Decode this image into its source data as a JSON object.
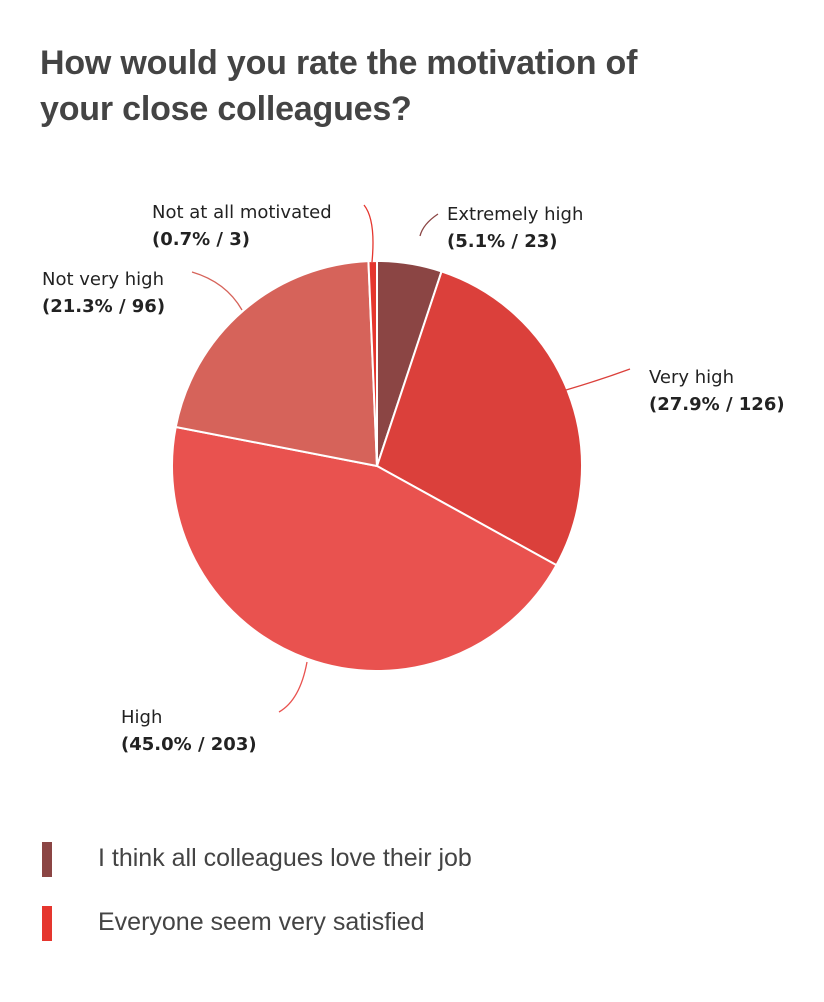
{
  "chart_data": {
    "type": "pie",
    "title": "How would you rate the motivation of your close colleagues?",
    "slices": [
      {
        "label": "Extremely high",
        "value": 23,
        "percent": "5.1%",
        "color": "#8B4544"
      },
      {
        "label": "Very high",
        "value": 126,
        "percent": "27.9%",
        "color": "#DB403B"
      },
      {
        "label": "High",
        "value": 203,
        "percent": "45.0%",
        "color": "#E9524F"
      },
      {
        "label": "Not very high",
        "value": 96,
        "percent": "21.3%",
        "color": "#D6635A"
      },
      {
        "label": "Not at all motivated",
        "value": 3,
        "percent": "0.7%",
        "color": "#E5362E"
      }
    ],
    "legend": [
      {
        "label": "I think all colleagues love their job",
        "color": "#8B4544"
      },
      {
        "label": "Everyone seem very satisfied",
        "color": "#E5362E"
      }
    ],
    "legend_position": "bottom-left"
  }
}
